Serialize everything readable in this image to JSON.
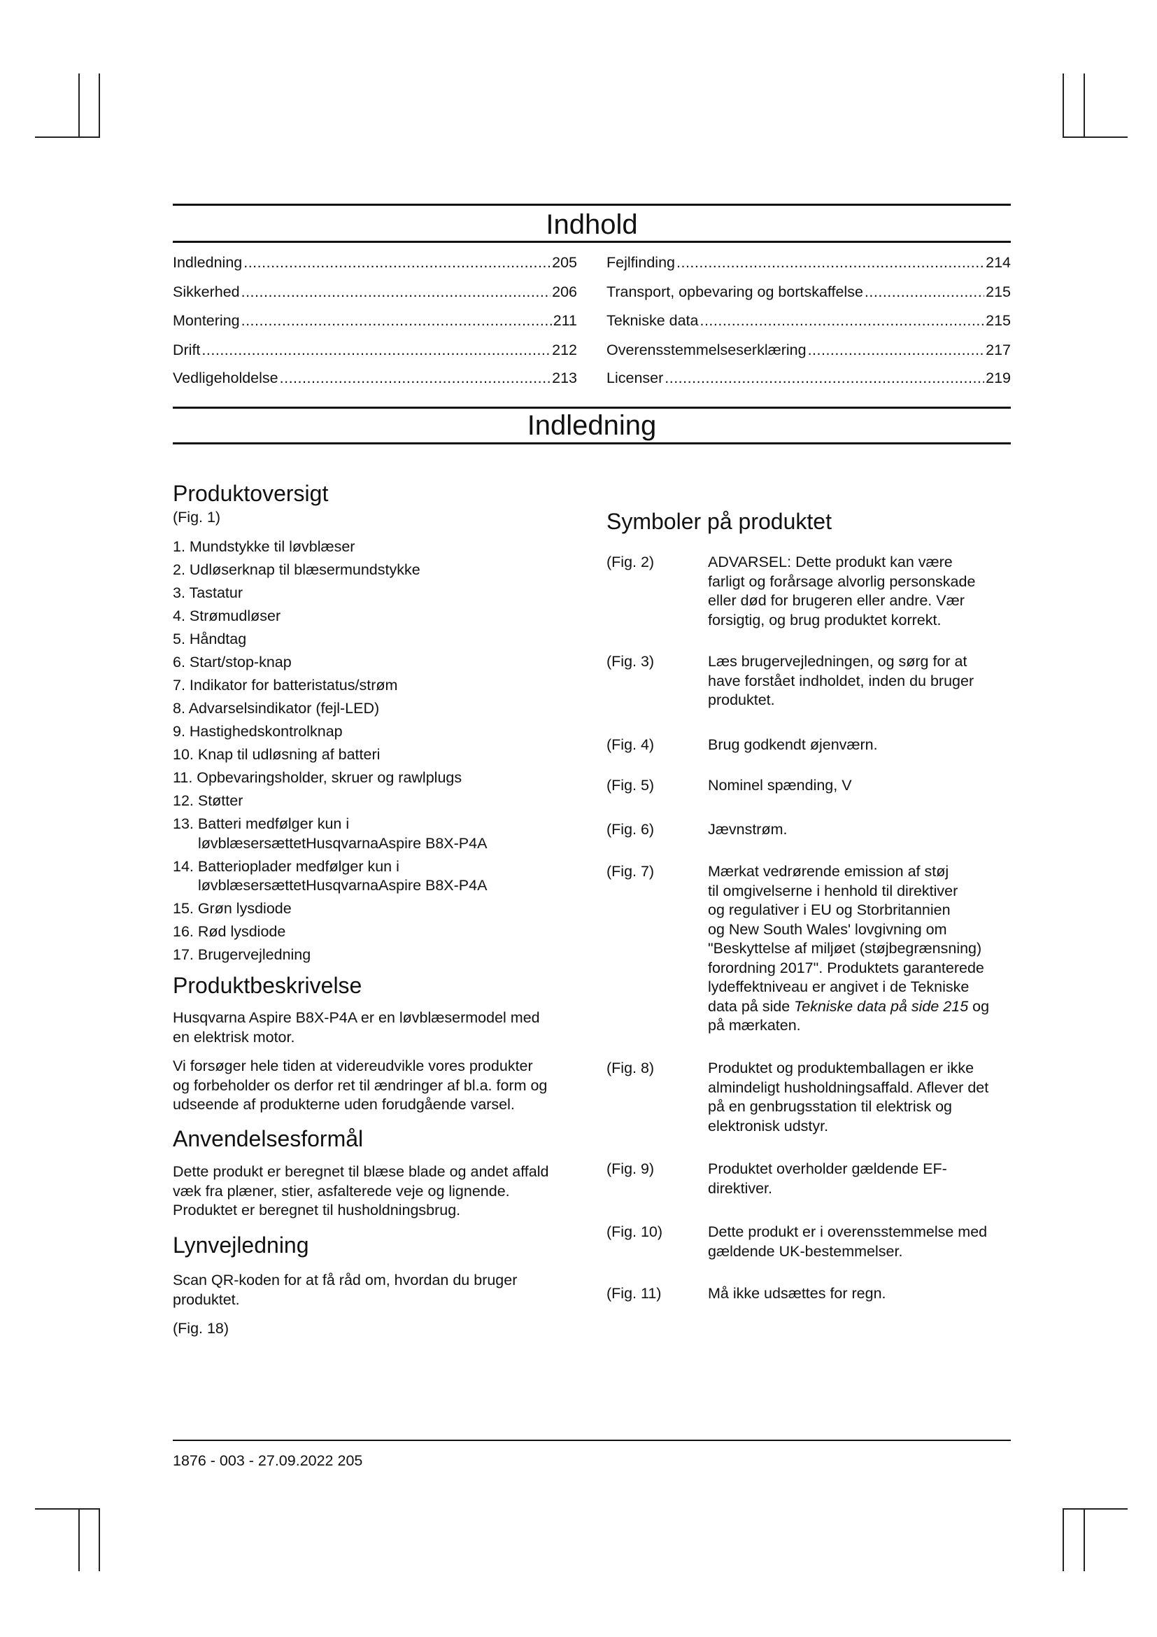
{
  "toc": {
    "title": "Indhold",
    "left": [
      {
        "label": "Indledning",
        "page": "205"
      },
      {
        "label": "Sikkerhed",
        "page": "206"
      },
      {
        "label": "Montering",
        "page": "211"
      },
      {
        "label": "Drift",
        "page": "212"
      },
      {
        "label": "Vedligeholdelse",
        "page": "213"
      }
    ],
    "right": [
      {
        "label": "Fejlfinding",
        "page": "214"
      },
      {
        "label": "Transport, opbevaring og bortskaffelse",
        "page": "215"
      },
      {
        "label": "Tekniske data",
        "page": "215"
      },
      {
        "label": "Overensstemmelseserklæring",
        "page": "217"
      },
      {
        "label": "Licenser",
        "page": "219"
      }
    ]
  },
  "section_title": "Indledning",
  "left": {
    "overview": {
      "heading": "Produktoversigt",
      "fig": "(Fig. 1)",
      "items": [
        [
          "1. Mundstykke til løvblæser"
        ],
        [
          "2. Udløserknap til blæsermundstykke"
        ],
        [
          "3. Tastatur"
        ],
        [
          "4. Strømudløser"
        ],
        [
          "5. Håndtag"
        ],
        [
          "6. Start/stop-knap"
        ],
        [
          "7. Indikator for batteristatus/strøm"
        ],
        [
          "8. Advarselsindikator (fejl-LED)"
        ],
        [
          "9. Hastighedskontrolknap"
        ],
        [
          "10. Knap til udløsning af batteri"
        ],
        [
          "11. Opbevaringsholder, skruer og rawlplugs"
        ],
        [
          "12. Støtter"
        ],
        [
          "13. Batteri medfølger kun i",
          "løvblæsersættetHusqvarnaAspire B8X-P4A"
        ],
        [
          "14. Batterioplader medfølger kun i",
          "løvblæsersættetHusqvarnaAspire B8X-P4A"
        ],
        [
          "15. Grøn lysdiode"
        ],
        [
          "16. Rød lysdiode"
        ],
        [
          "17. Brugervejledning"
        ]
      ]
    },
    "description": {
      "heading": "Produktbeskrivelse",
      "p1": [
        "Husqvarna Aspire B8X-P4A er en løvblæsermodel med",
        "en elektrisk motor."
      ],
      "p2": [
        "Vi forsøger hele tiden at videreudvikle vores produkter",
        "og forbeholder os derfor ret til ændringer af bl.a. form og",
        "udseende af produkterne uden forudgående varsel."
      ]
    },
    "purpose": {
      "heading": "Anvendelsesformål",
      "p1": [
        "Dette produkt er beregnet til blæse blade og andet affald",
        "væk fra plæner, stier, asfalterede veje og lignende.",
        "Produktet er beregnet til husholdningsbrug."
      ]
    },
    "quick": {
      "heading": "Lynvejledning",
      "p1": [
        "Scan QR-koden for at få råd om, hvordan du bruger",
        "produktet."
      ],
      "fig": "(Fig. 18)"
    }
  },
  "symbols": {
    "heading": "Symboler på produktet",
    "rows": [
      {
        "fig": "(Fig. 2)",
        "lines": [
          "ADVARSEL: Dette produkt kan være",
          "farligt og forårsage alvorlig personskade",
          "eller død for brugeren eller andre. Vær",
          "forsigtig, og brug produktet korrekt."
        ]
      },
      {
        "fig": "(Fig. 3)",
        "lines": [
          "Læs brugervejledningen, og sørg for at",
          "have forstået indholdet, inden du bruger",
          "produktet."
        ]
      },
      {
        "fig": "(Fig. 4)",
        "lines": [
          "Brug godkendt øjenværn."
        ]
      },
      {
        "fig": "(Fig. 5)",
        "lines": [
          "Nominel spænding, V"
        ]
      },
      {
        "fig": "(Fig. 6)",
        "lines": [
          "Jævnstrøm."
        ]
      },
      {
        "fig": "(Fig. 7)",
        "lines": [
          "Mærkat vedrørende emission af støj",
          "til omgivelserne i henhold til direktiver",
          "og regulativer i EU og Storbritannien",
          "og New South Wales' lovgivning om",
          "\"Beskyttelse af miljøet (støjbegrænsning)",
          "forordning 2017\". Produktets garanterede",
          "lydeffektniveau er angivet i de Tekniske"
        ],
        "line8_pre": "data på side ",
        "line8_ref": "Tekniske data på side 215",
        "line8_post": " og",
        "line9": "på mærkaten."
      },
      {
        "fig": "(Fig. 8)",
        "lines": [
          "Produktet og produktemballagen er ikke",
          "almindeligt husholdningsaffald. Aflever det",
          "på en genbrugsstation til elektrisk og",
          "elektronisk udstyr."
        ]
      },
      {
        "fig": "(Fig. 9)",
        "lines": [
          "Produktet overholder gældende EF-",
          "direktiver."
        ]
      },
      {
        "fig": "(Fig. 10)",
        "lines": [
          "Dette produkt er i overensstemmelse med",
          "gældende UK-bestemmelser."
        ]
      },
      {
        "fig": "(Fig. 11)",
        "lines": [
          "Må ikke udsættes for regn."
        ]
      }
    ]
  },
  "footer": {
    "text": "1876 - 003 - 27.09.2022 205"
  }
}
